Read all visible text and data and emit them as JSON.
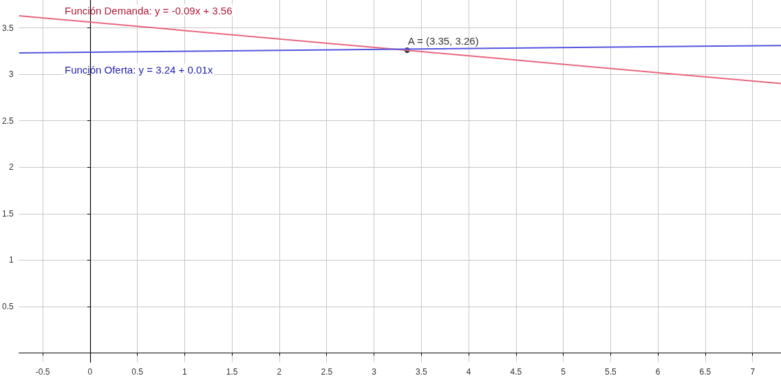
{
  "chart_data": {
    "type": "line",
    "series": [
      {
        "color": "#e8677f",
        "x": [
          -0.75,
          7.3
        ],
        "values": [
          3.63,
          2.9
        ]
      },
      {
        "color": "#5555e0",
        "x": [
          -0.75,
          7.3
        ],
        "values": [
          3.23,
          3.31
        ]
      },
      {
        "type": "scatter",
        "color": "#000000",
        "x": [
          3.35
        ],
        "values": [
          3.26
        ],
        "value_labels": [
          "A = (3.35, 3.26)"
        ]
      }
    ],
    "annotations": [
      "Función Demanda: y = -0.09x + 3.56",
      "Función Oferta: y = 3.24 + 0.01x"
    ],
    "xlim": [
      -0.75,
      7.3
    ],
    "ylim": [
      -0.1,
      3.8
    ],
    "xticks": [
      -0.5,
      0,
      0.5,
      1,
      1.5,
      2,
      2.5,
      3,
      3.5,
      4,
      4.5,
      5,
      5.5,
      6,
      6.5,
      7
    ],
    "yticks": [
      {
        "value": 0,
        "label": null
      },
      0.5,
      1,
      1.5,
      2,
      2.5,
      3,
      3.5
    ],
    "grid": true
  }
}
